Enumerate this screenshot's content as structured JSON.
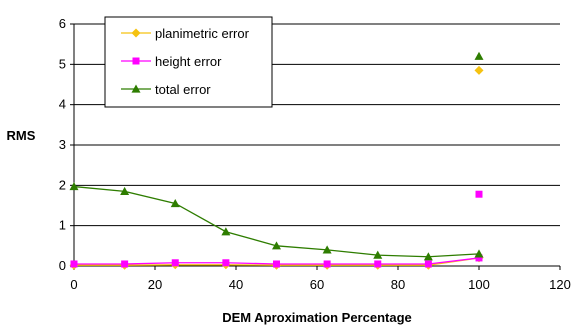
{
  "chart_data": {
    "type": "line",
    "xlabel": "DEM Aproximation Percentage",
    "ylabel": "RMS",
    "xlim": [
      0,
      120
    ],
    "ylim": [
      0,
      6
    ],
    "xticks": [
      "0",
      "20",
      "40",
      "60",
      "80",
      "100",
      "120"
    ],
    "yticks": [
      "0",
      "1",
      "2",
      "3",
      "4",
      "5",
      "6"
    ],
    "grid": "horizontal",
    "legend": "top-left",
    "series": [
      {
        "name": "planimetric error",
        "color": "#F5C211",
        "marker": "diamond",
        "connected": [
          {
            "x": 0,
            "y": 0.02
          },
          {
            "x": 12.5,
            "y": 0.02
          },
          {
            "x": 25,
            "y": 0.03
          },
          {
            "x": 37.5,
            "y": 0.03
          },
          {
            "x": 50,
            "y": 0.02
          },
          {
            "x": 62.5,
            "y": 0.02
          },
          {
            "x": 75,
            "y": 0.02
          },
          {
            "x": 87.5,
            "y": 0.02
          },
          {
            "x": 100,
            "y": 0.2
          }
        ],
        "isolated": [
          {
            "x": 100,
            "y": 4.85
          }
        ]
      },
      {
        "name": "height error",
        "color": "#FF00FF",
        "marker": "square",
        "connected": [
          {
            "x": 0,
            "y": 0.05
          },
          {
            "x": 12.5,
            "y": 0.05
          },
          {
            "x": 25,
            "y": 0.08
          },
          {
            "x": 37.5,
            "y": 0.08
          },
          {
            "x": 50,
            "y": 0.05
          },
          {
            "x": 62.5,
            "y": 0.05
          },
          {
            "x": 75,
            "y": 0.05
          },
          {
            "x": 87.5,
            "y": 0.05
          },
          {
            "x": 100,
            "y": 0.2
          }
        ],
        "isolated": [
          {
            "x": 100,
            "y": 1.78
          }
        ]
      },
      {
        "name": "total error",
        "color": "#2E7D00",
        "marker": "triangle",
        "connected": [
          {
            "x": 0,
            "y": 1.97
          },
          {
            "x": 12.5,
            "y": 1.85
          },
          {
            "x": 25,
            "y": 1.55
          },
          {
            "x": 37.5,
            "y": 0.85
          },
          {
            "x": 50,
            "y": 0.5
          },
          {
            "x": 62.5,
            "y": 0.4
          },
          {
            "x": 75,
            "y": 0.27
          },
          {
            "x": 87.5,
            "y": 0.23
          },
          {
            "x": 100,
            "y": 0.3
          }
        ],
        "isolated": [
          {
            "x": 100,
            "y": 5.2
          }
        ]
      }
    ]
  }
}
